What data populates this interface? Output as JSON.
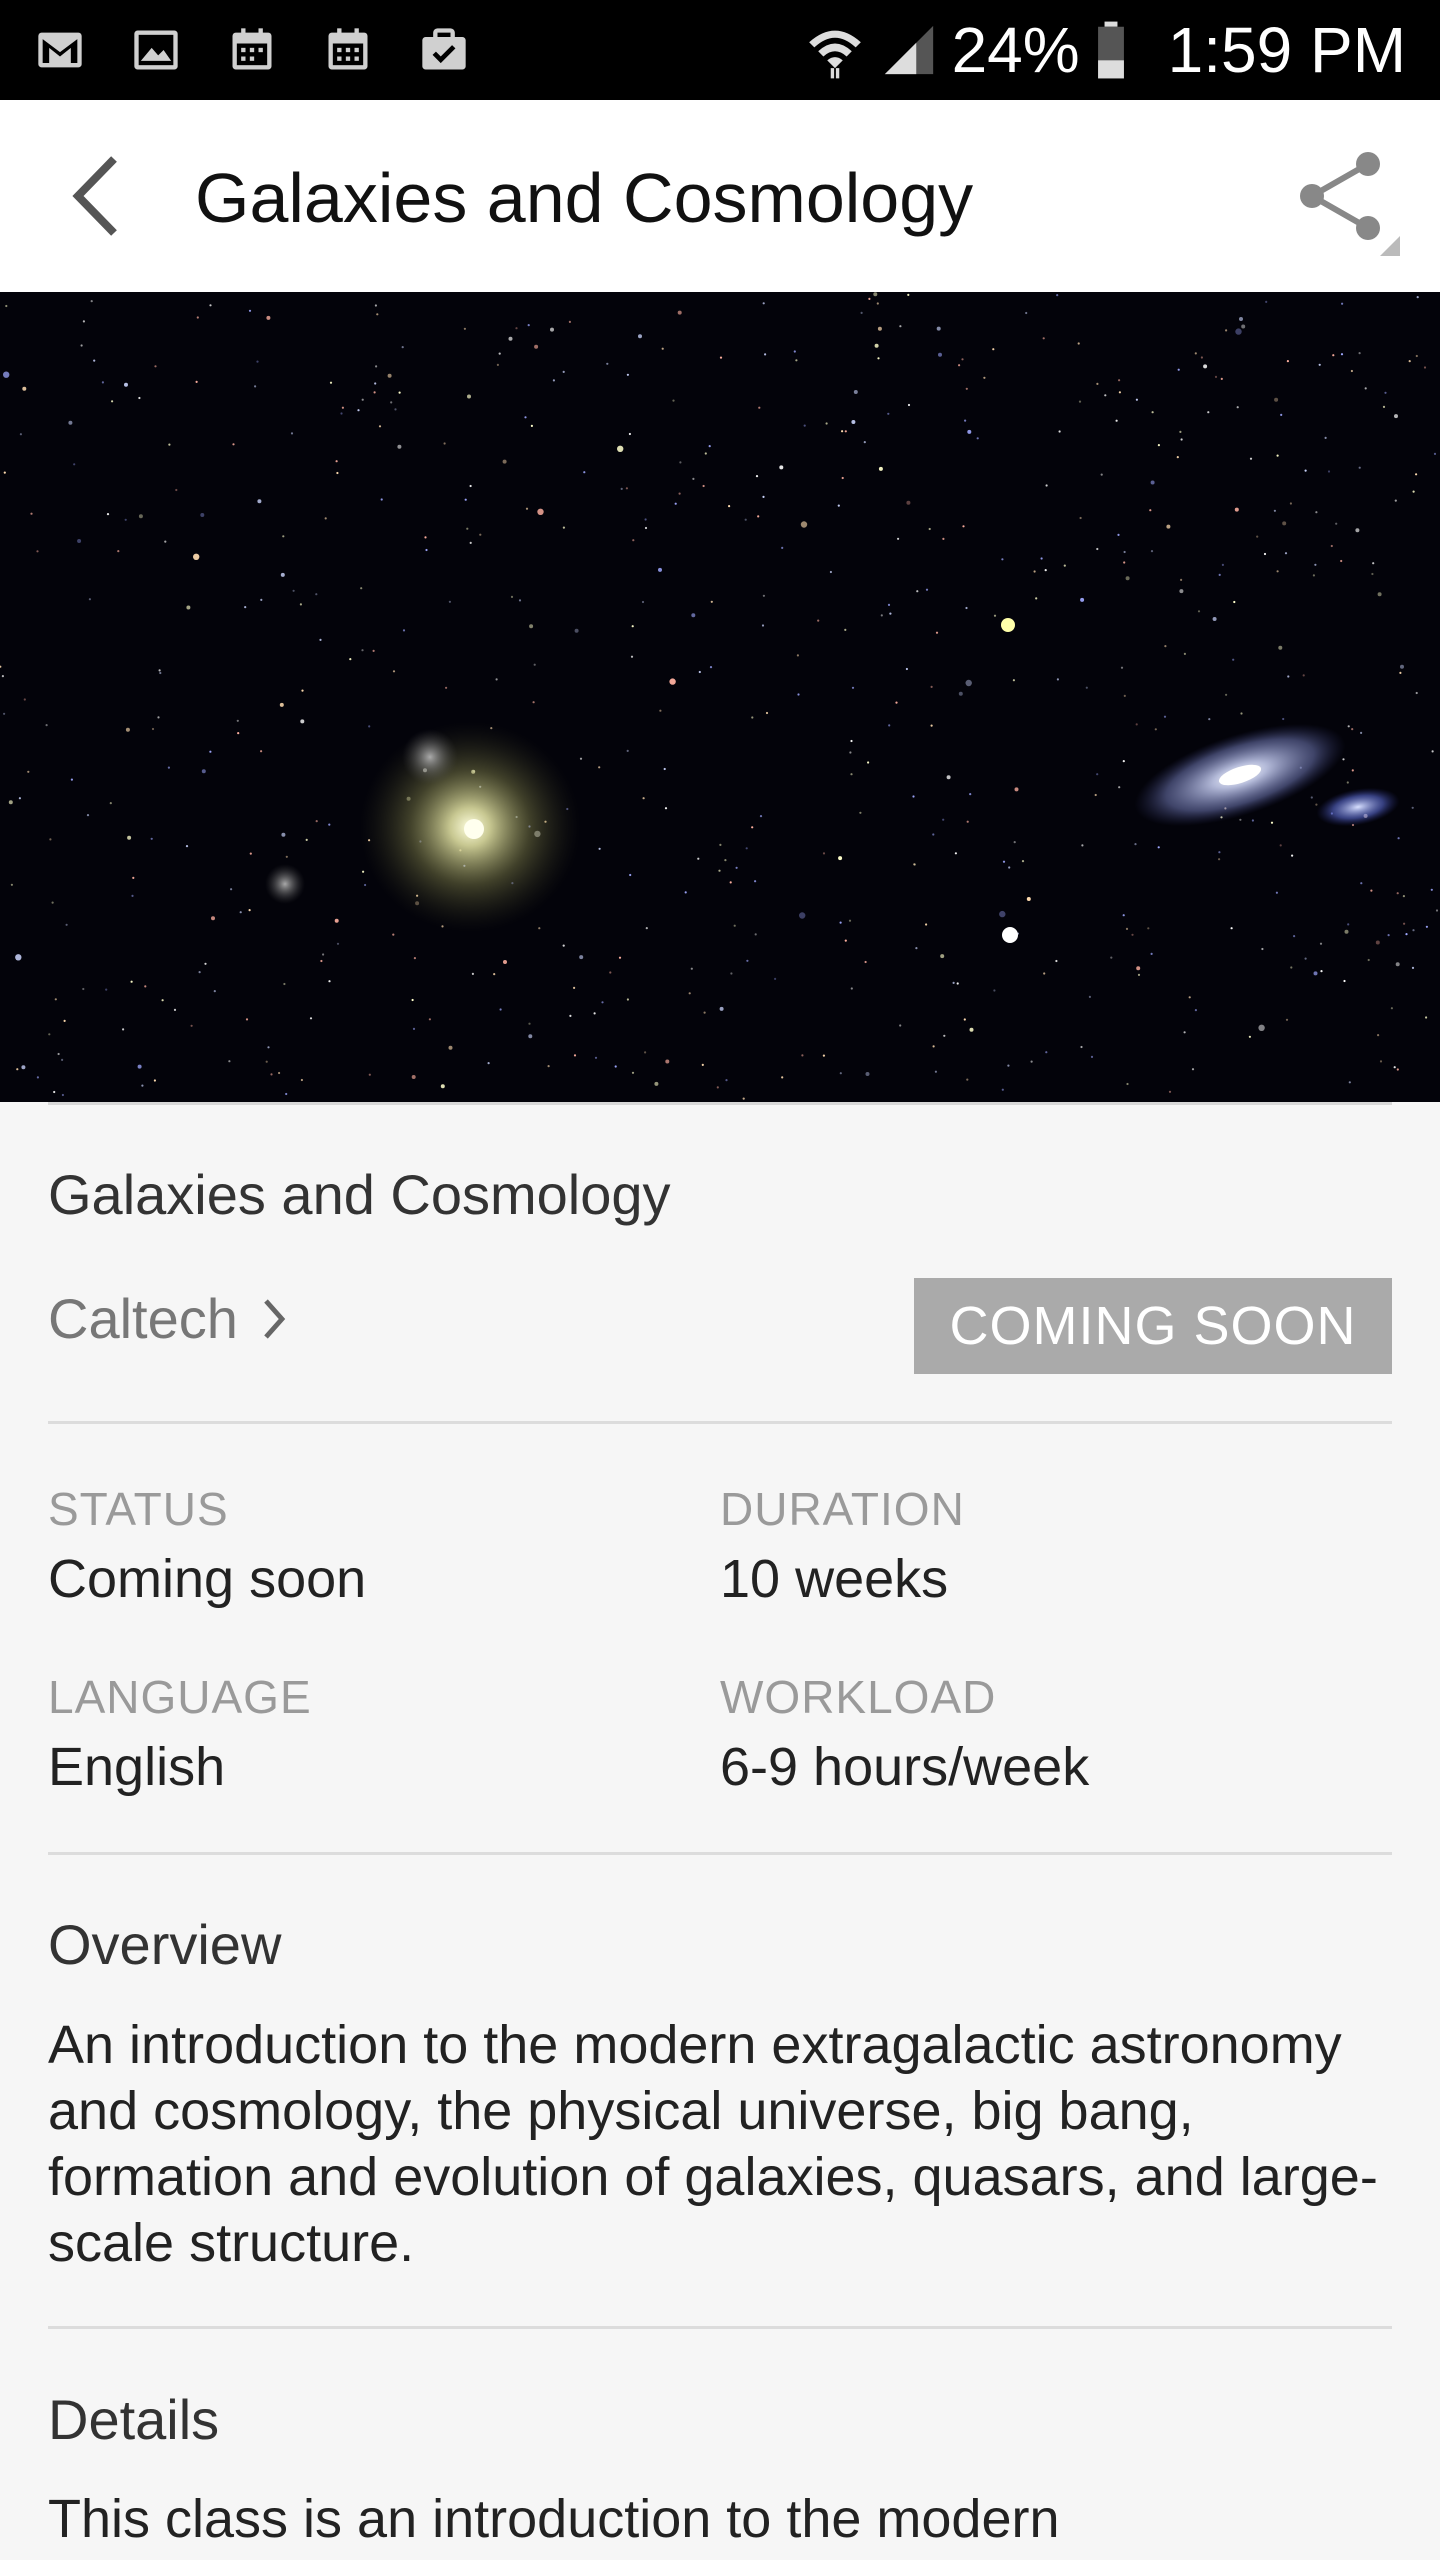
{
  "status_bar": {
    "icons": [
      "gmail-icon",
      "gallery-icon",
      "calendar-icon",
      "calendar-icon",
      "briefcase-icon"
    ],
    "battery": "24%",
    "time": "1:59 PM"
  },
  "app_bar": {
    "title": "Galaxies and Cosmology"
  },
  "course": {
    "title": "Galaxies and Cosmology",
    "provider": "Caltech",
    "action_label": "COMING SOON"
  },
  "meta": {
    "status_label": "STATUS",
    "status_value": "Coming soon",
    "duration_label": "DURATION",
    "duration_value": "10 weeks",
    "language_label": "LANGUAGE",
    "language_value": "English",
    "workload_label": "WORKLOAD",
    "workload_value": "6-9 hours/week"
  },
  "overview": {
    "heading": "Overview",
    "text": "An introduction to the modern extragalactic astronomy and cosmology, the physical universe, big bang, formation and evolution of galaxies, quasars, and large-scale structure."
  },
  "details": {
    "heading": "Details",
    "text": "This class is an introduction to the modern"
  },
  "colors": {
    "button_gray": "#aaaaaa",
    "status_bar": "#000000"
  }
}
